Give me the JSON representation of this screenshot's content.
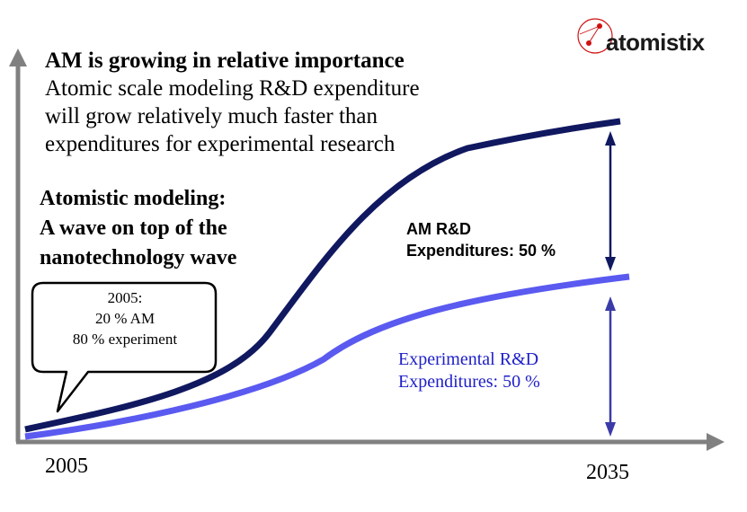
{
  "title_block": {
    "headline": "AM is growing in relative importance",
    "lines": [
      "Atomic scale modeling R&D expenditure",
      "will grow relatively much faster than",
      "expenditures for experimental research"
    ]
  },
  "slogan": {
    "lines": [
      "Atomistic modeling:",
      "A wave on top of the",
      "nanotechnology wave"
    ]
  },
  "callout": {
    "lines": [
      "2005:",
      "20 % AM",
      "80 % experiment"
    ]
  },
  "am_label": {
    "lines": [
      "AM R&D",
      "Expenditures: 50 %"
    ]
  },
  "exp_label": {
    "lines": [
      "Experimental R&D",
      "Expenditures: 50 %"
    ]
  },
  "axis": {
    "x_start": "2005",
    "x_end": "2035"
  },
  "brand": {
    "name": "atomistix"
  },
  "colors": {
    "am_curve": "#101860",
    "exp_curve": "#5a5af0",
    "am_arrow": "#101860",
    "exp_arrow": "#3b3ba8",
    "axis": "#808080",
    "logo_red": "#d01010"
  }
}
